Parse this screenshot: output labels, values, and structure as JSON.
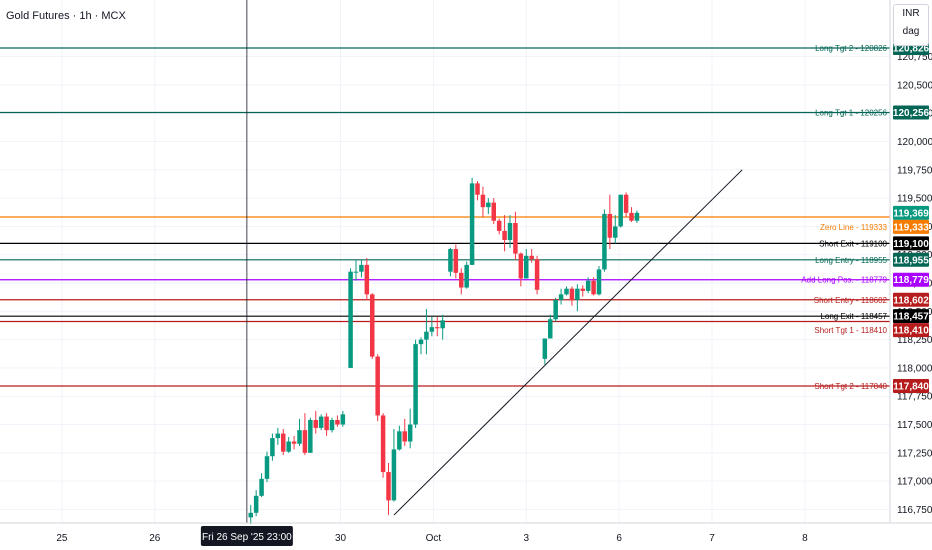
{
  "header": {
    "title": "Gold Futures · 1h · MCX"
  },
  "scale_box": {
    "currency": "INR",
    "unit": "dag"
  },
  "crosshair": {
    "label": "Fri 26 Sep '25   23:00"
  },
  "colors": {
    "up": "#089981",
    "down": "#f23645",
    "grid": "#f0f3fa",
    "axis_text": "#131722",
    "long": "#056656",
    "orange": "#f57c00",
    "black": "#000000",
    "purple": "#aa00ff",
    "red": "#b71c1c"
  },
  "chart_data": {
    "type": "candlestick",
    "x_ticks": [
      {
        "t": 0,
        "label": "25"
      },
      {
        "t": 24,
        "label": "26"
      },
      {
        "t": 72,
        "label": "30"
      },
      {
        "t": 96,
        "label": "Oct"
      },
      {
        "t": 120,
        "label": "3"
      },
      {
        "t": 144,
        "label": "6"
      },
      {
        "t": 168,
        "label": "7"
      },
      {
        "t": 192,
        "label": "8"
      }
    ],
    "y_ticks": [
      116750,
      117000,
      117250,
      117500,
      117750,
      118000,
      118250,
      118500,
      118750,
      119000,
      119250,
      119500,
      119750,
      120000,
      120250,
      120500,
      120750
    ],
    "ylim": [
      116630,
      121250
    ],
    "xlim": [
      -16,
      214
    ],
    "candles": [
      [
        48.8,
        116680,
        116790,
        116620,
        116720
      ],
      [
        50.2,
        116720,
        116920,
        116690,
        116870
      ],
      [
        51.6,
        116870,
        117070,
        116860,
        117020
      ],
      [
        53.0,
        117020,
        117260,
        116990,
        117220
      ],
      [
        54.4,
        117220,
        117420,
        117180,
        117380
      ],
      [
        55.8,
        117380,
        117470,
        117320,
        117420
      ],
      [
        57.2,
        117420,
        117460,
        117230,
        117260
      ],
      [
        58.6,
        117260,
        117390,
        117250,
        117350
      ],
      [
        60.0,
        117350,
        117400,
        117280,
        117330
      ],
      [
        61.4,
        117330,
        117550,
        117310,
        117450
      ],
      [
        62.8,
        117450,
        117600,
        117230,
        117250
      ],
      [
        64.2,
        117250,
        117560,
        117250,
        117540
      ],
      [
        65.6,
        117540,
        117620,
        117420,
        117470
      ],
      [
        67.0,
        117470,
        117590,
        117450,
        117570
      ],
      [
        68.4,
        117570,
        117600,
        117400,
        117450
      ],
      [
        69.8,
        117450,
        117560,
        117430,
        117540
      ],
      [
        71.2,
        117540,
        117580,
        117480,
        117500
      ],
      [
        72.6,
        117500,
        117620,
        117480,
        117590
      ],
      [
        74.6,
        118000,
        118880,
        118000,
        118850
      ],
      [
        76.0,
        118850,
        118950,
        118770,
        118850
      ],
      [
        77.4,
        118850,
        118950,
        118800,
        118910
      ],
      [
        78.8,
        118910,
        118970,
        118600,
        118650
      ],
      [
        80.2,
        118650,
        118660,
        118080,
        118100
      ],
      [
        81.6,
        118100,
        118120,
        117530,
        117580
      ],
      [
        83.0,
        117580,
        117600,
        117030,
        117080
      ],
      [
        84.4,
        117080,
        117160,
        116700,
        116830
      ],
      [
        85.8,
        116830,
        117460,
        116820,
        117280
      ],
      [
        87.2,
        117280,
        117490,
        117270,
        117440
      ],
      [
        88.6,
        117440,
        117550,
        117310,
        117350
      ],
      [
        90.0,
        117350,
        117640,
        117290,
        117500
      ],
      [
        91.4,
        117500,
        118250,
        117470,
        118210
      ],
      [
        92.8,
        118210,
        118270,
        118120,
        118250
      ],
      [
        94.2,
        118250,
        118520,
        118120,
        118320
      ],
      [
        95.6,
        118320,
        118450,
        118280,
        118360
      ],
      [
        97.0,
        118360,
        118450,
        118280,
        118350
      ],
      [
        98.4,
        118350,
        118470,
        118250,
        118420
      ],
      [
        100.4,
        118850,
        119060,
        118810,
        119050
      ],
      [
        101.8,
        119050,
        119090,
        118790,
        118840
      ],
      [
        103.2,
        118840,
        118880,
        118650,
        118710
      ],
      [
        104.6,
        118710,
        118940,
        118700,
        118910
      ],
      [
        106.0,
        118910,
        119680,
        118910,
        119630
      ],
      [
        107.4,
        119630,
        119650,
        119480,
        119530
      ],
      [
        108.8,
        119530,
        119600,
        119330,
        119420
      ],
      [
        110.2,
        119420,
        119500,
        119360,
        119460
      ],
      [
        111.6,
        119460,
        119500,
        119270,
        119300
      ],
      [
        113.0,
        119300,
        119320,
        119180,
        119210
      ],
      [
        114.4,
        119210,
        119350,
        119030,
        119130
      ],
      [
        115.8,
        119130,
        119350,
        119060,
        119280
      ],
      [
        117.2,
        119280,
        119380,
        118950,
        119010
      ],
      [
        118.6,
        119010,
        119020,
        118720,
        118790
      ],
      [
        120.0,
        118790,
        119050,
        118790,
        118990
      ],
      [
        121.4,
        118990,
        119050,
        118930,
        118960
      ],
      [
        122.8,
        118960,
        118990,
        118650,
        118690
      ],
      [
        124.8,
        118080,
        118250,
        118030,
        118260
      ],
      [
        126.2,
        118260,
        118470,
        118260,
        118430
      ],
      [
        127.6,
        118430,
        118620,
        118410,
        118600
      ],
      [
        129.0,
        118600,
        118700,
        118560,
        118650
      ],
      [
        130.4,
        118650,
        118720,
        118640,
        118700
      ],
      [
        131.8,
        118700,
        118720,
        118550,
        118600
      ],
      [
        133.2,
        118600,
        118740,
        118500,
        118700
      ],
      [
        134.6,
        118700,
        118730,
        118630,
        118680
      ],
      [
        136.0,
        118680,
        118800,
        118660,
        118770
      ],
      [
        137.4,
        118770,
        118800,
        118640,
        118650
      ],
      [
        138.8,
        118650,
        118900,
        118640,
        118870
      ],
      [
        140.2,
        118870,
        119400,
        118850,
        119360
      ],
      [
        141.6,
        119360,
        119530,
        119050,
        119150
      ],
      [
        143.0,
        119150,
        119350,
        119100,
        119250
      ],
      [
        144.4,
        119250,
        119530,
        119240,
        119530
      ],
      [
        145.8,
        119530,
        119550,
        119330,
        119370
      ],
      [
        147.2,
        119370,
        119420,
        119290,
        119300
      ],
      [
        148.6,
        119300,
        119390,
        119280,
        119370
      ]
    ],
    "levels": [
      {
        "label": "Long Tgt 2 - 120826",
        "value": 120826,
        "price": "120,826",
        "color": "long"
      },
      {
        "label": "Long Tgt 1 - 120256",
        "value": 120256,
        "price": "120,256",
        "color": "long"
      },
      {
        "label": "Zero Line - 119333",
        "value": 119333,
        "price": "119,333",
        "color": "orange"
      },
      {
        "label": "Short Exit - 119100",
        "value": 119100,
        "price": "119,100",
        "color": "black"
      },
      {
        "label": "Long Entry - 118955",
        "value": 118955,
        "price": "118,955",
        "color": "long"
      },
      {
        "label": "Add Long Pos. - 118779",
        "value": 118779,
        "price": "118,779",
        "color": "purple"
      },
      {
        "label": "Short Entry - 118602",
        "value": 118602,
        "price": "118,602",
        "color": "red"
      },
      {
        "label": "Long Exit - 118457",
        "value": 118457,
        "price": "118,457",
        "color": "black"
      },
      {
        "label": "Short Tgt 1 - 118410",
        "value": 118410,
        "price": "118,410",
        "color": "red"
      },
      {
        "label": "Short Tgt 2 - 117840",
        "value": 117840,
        "price": "117,840",
        "color": "red"
      }
    ],
    "last_price": {
      "value": 119369,
      "price": "119,369"
    },
    "trendline": {
      "start": [
        85.8,
        116700
      ],
      "end": [
        175.8,
        119750
      ]
    },
    "crosshair_t": 47.8
  }
}
